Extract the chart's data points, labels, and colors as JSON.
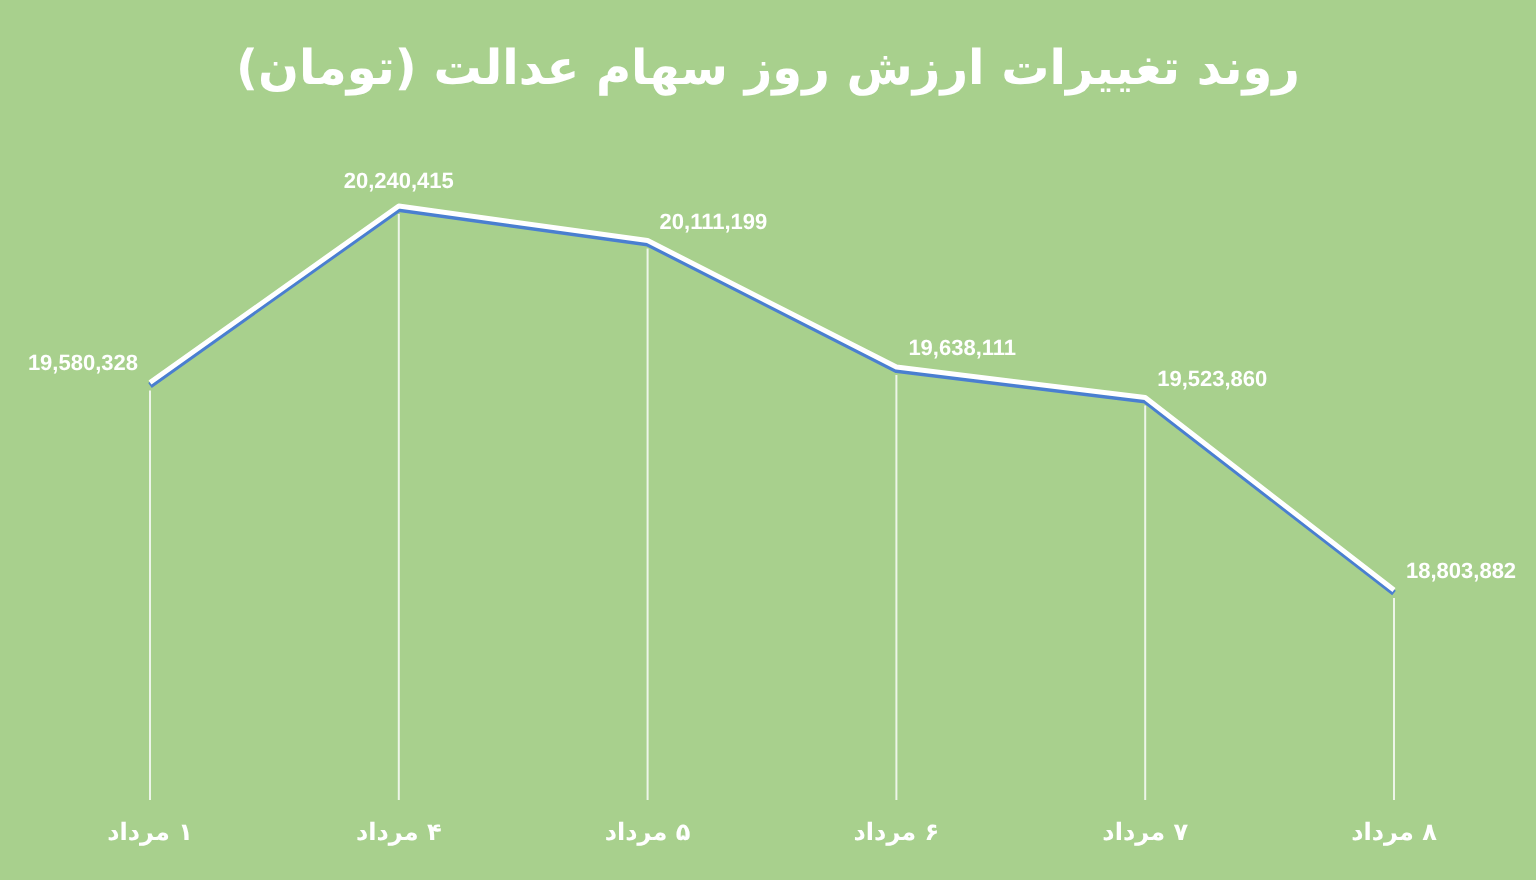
{
  "chart_data": {
    "type": "line",
    "title": "روند تغییرات ارزش روز سهام عدالت (تومان)",
    "categories": [
      "۱ مرداد",
      "۴ مرداد",
      "۵ مرداد",
      "۶ مرداد",
      "۷ مرداد",
      "۸ مرداد"
    ],
    "series": [
      {
        "color": "#ffffff",
        "values": [
          19580328,
          20240415,
          20111199,
          19638111,
          19523860,
          18803882
        ],
        "value_labels": [
          "19,580,328",
          "20,240,415",
          "20,111,199",
          "19,638,111",
          "19,523,860",
          "18,803,882"
        ]
      }
    ],
    "grid": "x"
  }
}
